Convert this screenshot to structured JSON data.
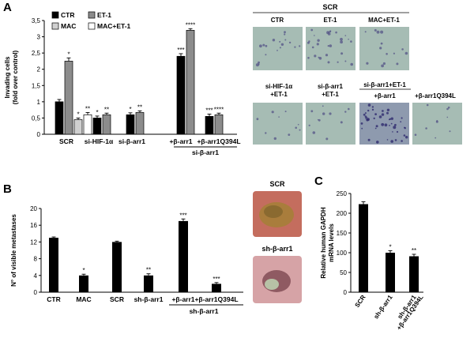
{
  "panels": {
    "a": "A",
    "b": "B",
    "c": "C"
  },
  "chart_data": [
    {
      "type": "bar",
      "panel": "A",
      "ylabel": "Invading cells\n(fold over control)",
      "ylim": [
        0,
        3.5
      ],
      "yticks": [
        "0",
        "0,5",
        "1",
        "1,5",
        "2",
        "2,5",
        "3",
        "3,5"
      ],
      "legend": [
        "CTR",
        "ET-1",
        "MAC",
        "MAC+ET-1"
      ],
      "colors": [
        "#000000",
        "#8c8c8c",
        "#d0d0d0",
        "#ffffff"
      ],
      "groups": [
        {
          "label": "SCR",
          "bars": [
            {
              "series": 0,
              "value": 1.0,
              "err": 0.07,
              "star": ""
            },
            {
              "series": 1,
              "value": 2.25,
              "err": 0.1,
              "star": "*"
            },
            {
              "series": 2,
              "value": 0.45,
              "err": 0.05,
              "star": "*"
            },
            {
              "series": 3,
              "value": 0.6,
              "err": 0.07,
              "star": "**"
            }
          ]
        },
        {
          "label": "si-HIF-1α",
          "bars": [
            {
              "series": 0,
              "value": 0.5,
              "err": 0.06,
              "star": "*"
            },
            {
              "series": 1,
              "value": 0.6,
              "err": 0.05,
              "star": "**"
            }
          ]
        },
        {
          "label": "si-β-arr1",
          "bars": [
            {
              "series": 0,
              "value": 0.6,
              "err": 0.06,
              "star": "*"
            },
            {
              "series": 1,
              "value": 0.67,
              "err": 0.05,
              "star": "**"
            }
          ]
        },
        {
          "label": "+β-arr1",
          "bars": [
            {
              "series": 0,
              "value": 2.4,
              "err": 0.08,
              "star": "***"
            },
            {
              "series": 1,
              "value": 3.2,
              "err": 0.05,
              "star": "****"
            }
          ]
        },
        {
          "label": "+β-arr1Q394L",
          "bars": [
            {
              "series": 0,
              "value": 0.55,
              "err": 0.07,
              "star": "***"
            },
            {
              "series": 1,
              "value": 0.6,
              "err": 0.05,
              "star": "****"
            }
          ]
        }
      ],
      "bracket_label": "si-β-arr1"
    },
    {
      "type": "bar",
      "panel": "B",
      "ylabel": "N° of visible metastases",
      "ylim": [
        0,
        20
      ],
      "yticks": [
        "0",
        "4",
        "8",
        "12",
        "16",
        "20"
      ],
      "categories": [
        "CTR",
        "MAC",
        "SCR",
        "sh-β-arr1",
        "+β-arr1",
        "+β-arr1Q394L"
      ],
      "values": [
        13,
        4,
        12,
        4,
        17,
        2
      ],
      "errors": [
        0.2,
        0.3,
        0.2,
        0.4,
        0.5,
        0.3
      ],
      "stars": [
        "",
        "*",
        "",
        "**",
        "***",
        "***"
      ],
      "bracket_label": "sh-β-arr1"
    },
    {
      "type": "bar",
      "panel": "C",
      "ylabel": "Relative human GAPDH\nmRNA levels",
      "ylim": [
        0,
        250
      ],
      "yticks": [
        "0",
        "50",
        "100",
        "150",
        "200",
        "250"
      ],
      "categories": [
        "SCR",
        "sh-β-arr1",
        "sh-β-arr1\n+β-arr1Q394L"
      ],
      "values": [
        223,
        100,
        91
      ],
      "errors": [
        6,
        5,
        5
      ],
      "stars": [
        "",
        "*",
        "**"
      ]
    }
  ],
  "micrographs": {
    "top_header": "SCR",
    "top_labels": [
      "CTR",
      "ET-1",
      "MAC+ET-1"
    ],
    "bottom_labels": [
      "si-HIF-1α\n+ET-1",
      "si-β-arr1\n+ET-1",
      "+β-arr1",
      "+β-arr1Q394L"
    ],
    "bottom_header": "si-β-arr1+ET-1"
  },
  "mouse_images": {
    "top": "SCR",
    "bottom": "sh-β-arr1"
  }
}
